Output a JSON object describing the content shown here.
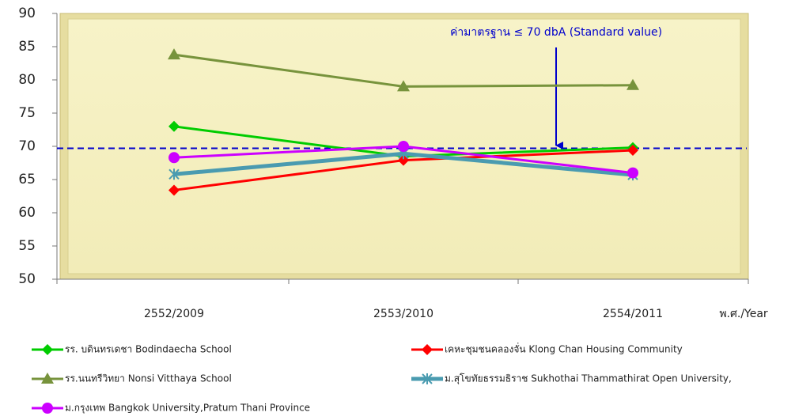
{
  "chart_data": {
    "type": "line",
    "categories": [
      "2552/2009",
      "2553/2010",
      "2554/2011"
    ],
    "xlabel": "พ.ศ./Year",
    "ylim": [
      50,
      90
    ],
    "yticks": [
      50,
      55,
      60,
      65,
      70,
      75,
      80,
      85,
      90
    ],
    "reference_line": {
      "value": 69.7,
      "label": "ค่ามาตรฐาน  ≤ 70 dbA (Standard value)",
      "color": "#0000cc"
    },
    "series": [
      {
        "name": "รร. บดินทรเดชา Bodindaecha School",
        "color": "#00cc00",
        "marker": "diamond",
        "values": [
          73,
          68.5,
          69.8
        ]
      },
      {
        "name": "เคหะชุมชนคลองจั่น Klong Chan Housing Community",
        "color": "#ff0000",
        "marker": "diamond",
        "values": [
          63.4,
          67.9,
          69.4
        ]
      },
      {
        "name": "รร.นนทรีวิทยา Nonsi Vitthaya  School",
        "color": "#77933c",
        "marker": "triangle",
        "values": [
          83.8,
          79,
          79.2
        ]
      },
      {
        "name": "ม.สุโขทัยธรรมธิราช Sukhothai Thammathirat Open University,",
        "color": "#4a9bb0",
        "marker": "star",
        "values": [
          65.8,
          68.9,
          65.7
        ]
      },
      {
        "name": "ม.กรุงเทพ Bangkok University,Pratum Thani Province",
        "color": "#cc00ff",
        "marker": "circle",
        "values": [
          68.3,
          70,
          66
        ]
      }
    ]
  }
}
